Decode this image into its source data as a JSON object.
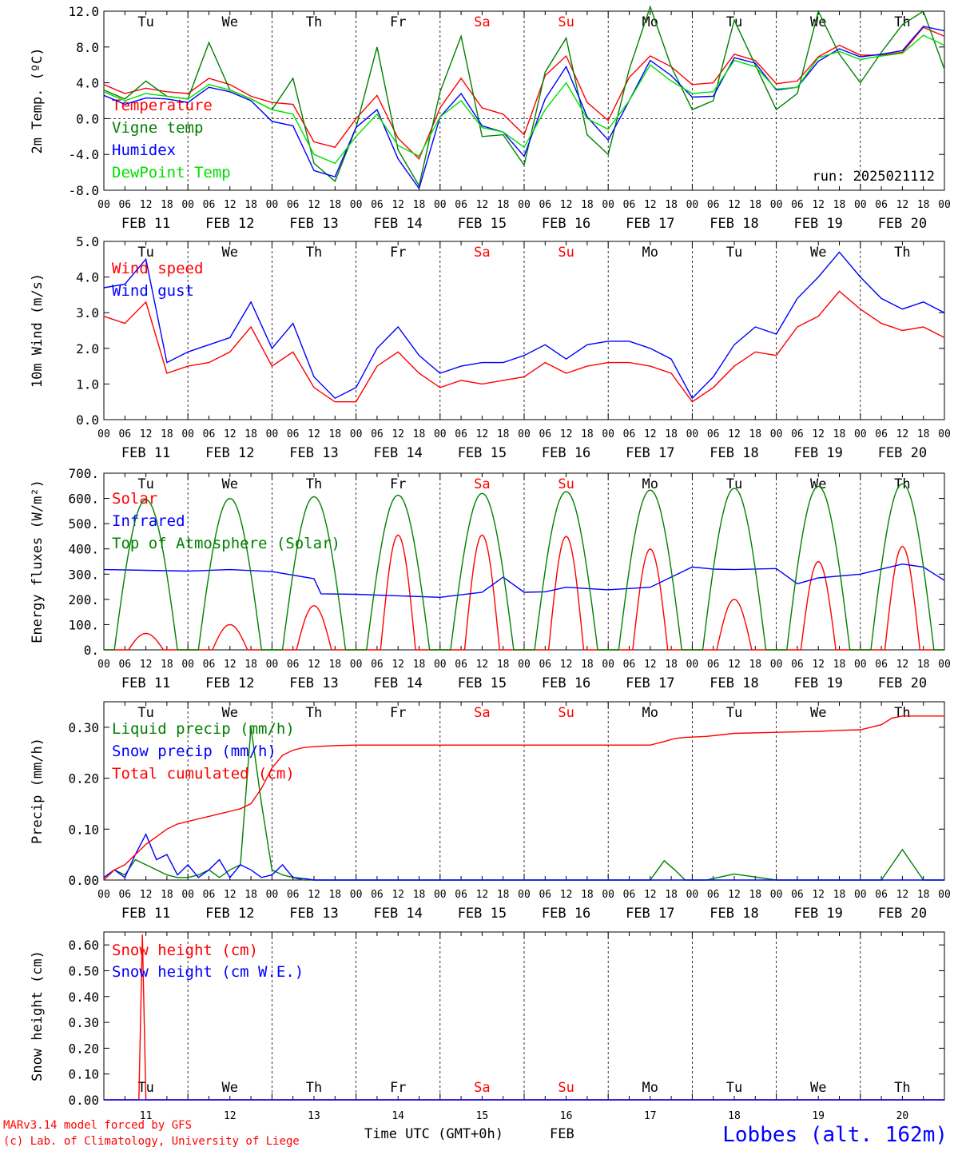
{
  "days": {
    "weekday_labels": [
      "Tu",
      "We",
      "Th",
      "Fr",
      "Sa",
      "Su",
      "Mo",
      "Tu",
      "We",
      "Th"
    ],
    "weekend_indices": [
      4,
      5
    ],
    "date_labels": [
      "FEB 11",
      "FEB 12",
      "FEB 13",
      "FEB 14",
      "FEB 15",
      "FEB 16",
      "FEB 17",
      "FEB 18",
      "FEB 19",
      "FEB 20"
    ],
    "hour_ticks": [
      "00",
      "06",
      "12",
      "18"
    ],
    "hour_end": "00",
    "day_numbers": [
      "11",
      "12",
      "13",
      "14",
      "15",
      "16",
      "17",
      "18",
      "19",
      "20"
    ]
  },
  "colors": {
    "red": "#ff0000",
    "green": "#008000",
    "blue": "#0000ff",
    "lightgreen": "#00e000",
    "weekend": "#ff0000"
  },
  "footer": {
    "model": "MARv3.14 model forced by GFS",
    "lab": "(c) Lab. of Climatology, University of Liege",
    "xlabel": "Time UTC (GMT+0h)",
    "month": "FEB",
    "station": "Lobbes (alt. 162m)"
  },
  "chart_data": [
    {
      "type": "line",
      "ylabel": "2m Temp. (ºC)",
      "ylim": [
        -8,
        12
      ],
      "yticks": [
        "12.0",
        "8.0",
        "4.0",
        "0.0",
        "-4.0",
        "-8.0"
      ],
      "annotation": "run: 2025021112",
      "x_hours": [
        0,
        6,
        12,
        18,
        24,
        30,
        36,
        42,
        48,
        54,
        60,
        66,
        72,
        78,
        84,
        90,
        96,
        102,
        108,
        114,
        120,
        126,
        132,
        138,
        144,
        150,
        156,
        162,
        168,
        174,
        180,
        186,
        192,
        198,
        204,
        210,
        216,
        222,
        228,
        234,
        240
      ],
      "series": [
        {
          "name": "Temperature",
          "color_key": "red",
          "values": [
            3.8,
            2.8,
            3.4,
            3.0,
            2.8,
            4.5,
            3.8,
            2.5,
            1.8,
            1.6,
            -2.6,
            -3.2,
            0.0,
            2.6,
            -2.2,
            -4.5,
            1.2,
            4.5,
            1.2,
            0.5,
            -1.8,
            4.8,
            7.0,
            1.8,
            -0.2,
            4.6,
            7.0,
            5.8,
            3.8,
            4.0,
            7.2,
            6.5,
            3.9,
            4.2,
            6.9,
            8.2,
            7.1,
            7.1,
            7.4,
            10.2,
            9.2
          ]
        },
        {
          "name": "Vigne temp",
          "color_key": "green",
          "values": [
            3.2,
            2.2,
            4.2,
            2.5,
            2.2,
            8.5,
            3.2,
            2.2,
            1.0,
            4.5,
            -5.0,
            -7.0,
            -1.0,
            8.0,
            -3.5,
            -7.5,
            3.0,
            9.2,
            -2.0,
            -1.8,
            -5.2,
            5.2,
            9.0,
            -1.8,
            -4.0,
            5.5,
            12.5,
            5.8,
            1.0,
            2.0,
            11.0,
            6.0,
            1.0,
            2.8,
            12.0,
            7.2,
            4.0,
            7.4,
            10.5,
            12.0,
            5.5
          ]
        },
        {
          "name": "Humidex",
          "color_key": "blue",
          "values": [
            2.6,
            1.6,
            2.3,
            2.2,
            1.8,
            3.5,
            3.0,
            2.0,
            -0.3,
            -0.8,
            -5.8,
            -6.5,
            -1.0,
            1.0,
            -4.5,
            -7.8,
            0.2,
            2.8,
            -0.8,
            -1.5,
            -4.2,
            2.2,
            5.8,
            0.2,
            -2.4,
            2.0,
            6.5,
            4.8,
            2.4,
            2.5,
            6.8,
            6.2,
            3.2,
            3.5,
            6.4,
            7.8,
            6.9,
            7.2,
            7.6,
            10.3,
            9.8
          ]
        },
        {
          "name": "DewPoint Temp",
          "color_key": "lightgreen",
          "values": [
            3.0,
            2.0,
            2.8,
            2.5,
            2.2,
            3.8,
            3.2,
            2.2,
            1.0,
            0.5,
            -4.0,
            -5.0,
            -2.0,
            0.5,
            -3.0,
            -4.2,
            0.2,
            2.0,
            -1.0,
            -1.5,
            -3.2,
            1.0,
            4.0,
            0.0,
            -1.2,
            2.0,
            6.0,
            4.2,
            2.8,
            3.0,
            6.5,
            5.8,
            3.3,
            3.5,
            6.8,
            7.5,
            6.6,
            7.0,
            7.3,
            9.3,
            8.2
          ]
        }
      ]
    },
    {
      "type": "line",
      "ylabel": "10m Wind (m/s)",
      "ylim": [
        0,
        5
      ],
      "yticks": [
        "5.0",
        "4.0",
        "3.0",
        "2.0",
        "1.0",
        "0.0"
      ],
      "x_hours": [
        0,
        6,
        12,
        18,
        24,
        30,
        36,
        42,
        48,
        54,
        60,
        66,
        72,
        78,
        84,
        90,
        96,
        102,
        108,
        114,
        120,
        126,
        132,
        138,
        144,
        150,
        156,
        162,
        168,
        174,
        180,
        186,
        192,
        198,
        204,
        210,
        216,
        222,
        228,
        234,
        240
      ],
      "series": [
        {
          "name": "Wind speed",
          "color_key": "red",
          "values": [
            2.9,
            2.7,
            3.3,
            1.3,
            1.5,
            1.6,
            1.9,
            2.6,
            1.5,
            1.9,
            0.9,
            0.5,
            0.5,
            1.5,
            1.9,
            1.3,
            0.9,
            1.1,
            1.0,
            1.1,
            1.2,
            1.6,
            1.3,
            1.5,
            1.6,
            1.6,
            1.5,
            1.3,
            0.5,
            0.9,
            1.5,
            1.9,
            1.8,
            2.6,
            2.9,
            3.6,
            3.1,
            2.7,
            2.5,
            2.6,
            2.3
          ]
        },
        {
          "name": "Wind gust",
          "color_key": "blue",
          "values": [
            3.7,
            3.8,
            4.5,
            1.6,
            1.9,
            2.1,
            2.3,
            3.3,
            2.0,
            2.7,
            1.2,
            0.6,
            0.9,
            2.0,
            2.6,
            1.8,
            1.3,
            1.5,
            1.6,
            1.6,
            1.8,
            2.1,
            1.7,
            2.1,
            2.2,
            2.2,
            2.0,
            1.7,
            0.6,
            1.2,
            2.1,
            2.6,
            2.4,
            3.4,
            4.0,
            4.7,
            4.0,
            3.4,
            3.1,
            3.3,
            3.0
          ]
        }
      ]
    },
    {
      "type": "line",
      "ylabel": "Energy fluxes (W/m²)",
      "ylim": [
        0,
        700
      ],
      "yticks": [
        "700.",
        "600.",
        "500.",
        "400.",
        "300.",
        "200.",
        "100.",
        "0."
      ],
      "series": [
        {
          "name": "Solar",
          "color_key": "red",
          "peaks": [
            65,
            100,
            175,
            455,
            455,
            450,
            400,
            200,
            350,
            410
          ]
        },
        {
          "name": "Infrared",
          "color_key": "blue",
          "x_hours": [
            0,
            12,
            24,
            36,
            48,
            60,
            62,
            72,
            84,
            96,
            108,
            114,
            120,
            126,
            132,
            144,
            156,
            168,
            174,
            180,
            192,
            198,
            204,
            216,
            228,
            234,
            240
          ],
          "values": [
            318,
            315,
            312,
            318,
            310,
            282,
            222,
            220,
            214,
            208,
            228,
            288,
            228,
            230,
            248,
            238,
            248,
            328,
            320,
            318,
            322,
            262,
            285,
            300,
            340,
            328,
            275
          ]
        },
        {
          "name": "Top of Atmosphere (Solar)",
          "color_key": "green",
          "peaks": [
            595,
            600,
            607,
            613,
            620,
            627,
            633,
            640,
            648,
            658
          ]
        }
      ]
    },
    {
      "type": "line",
      "ylabel": "Precip (mm/h)",
      "ylim": [
        0,
        0.35
      ],
      "yticks": [
        "0.30",
        "0.20",
        "0.10",
        "0.00"
      ],
      "x_hours": [
        0,
        3,
        6,
        9,
        12,
        15,
        18,
        21,
        24,
        27,
        30,
        33,
        36,
        39,
        42,
        45,
        48,
        51,
        54,
        57,
        60,
        66,
        72,
        78,
        84,
        96,
        108,
        120,
        132,
        144,
        150,
        156,
        160,
        163,
        166,
        172,
        180,
        192,
        204,
        210,
        216,
        222,
        225,
        228,
        234,
        240
      ],
      "series": [
        {
          "name": "Liquid precip (mm/h)",
          "color_key": "green",
          "values": [
            0.005,
            0.02,
            0.01,
            0.04,
            0.03,
            0.02,
            0.01,
            0.005,
            0.005,
            0.01,
            0.02,
            0.005,
            0.02,
            0.03,
            0.3,
            0.15,
            0.02,
            0.01,
            0.005,
            0.0,
            0.0,
            0.0,
            0.0,
            0.0,
            0.0,
            0.0,
            0.0,
            0.0,
            0.0,
            0.0,
            0.0,
            0.0,
            0.038,
            0.02,
            0.0,
            0.0,
            0.012,
            0.0,
            0.0,
            0.0,
            0.0,
            0.0,
            0.03,
            0.06,
            0.0,
            0.0
          ]
        },
        {
          "name": "Snow precip (mm/h)",
          "color_key": "blue",
          "values": [
            0.005,
            0.02,
            0.005,
            0.05,
            0.09,
            0.04,
            0.05,
            0.01,
            0.03,
            0.005,
            0.02,
            0.04,
            0.005,
            0.03,
            0.02,
            0.005,
            0.01,
            0.03,
            0.005,
            0.003,
            0.0,
            0.0,
            0.0,
            0.0,
            0.0,
            0.0,
            0.0,
            0.0,
            0.0,
            0.0,
            0.0,
            0.0,
            0.0,
            0.0,
            0.0,
            0.0,
            0.0,
            0.0,
            0.0,
            0.0,
            0.0,
            0.0,
            0.0,
            0.0,
            0.0,
            0.0
          ]
        },
        {
          "name": "Total cumulated (cm)",
          "color_key": "red",
          "values": [
            0.0,
            0.02,
            0.03,
            0.05,
            0.07,
            0.085,
            0.1,
            0.11,
            0.115,
            0.12,
            0.125,
            0.13,
            0.135,
            0.14,
            0.15,
            0.18,
            0.22,
            0.245,
            0.255,
            0.26,
            0.262,
            0.264,
            0.265,
            0.265,
            0.265,
            0.265,
            0.265,
            0.265,
            0.265,
            0.265,
            0.265,
            0.265,
            0.272,
            0.278,
            0.28,
            0.282,
            0.288,
            0.29,
            0.292,
            0.294,
            0.295,
            0.305,
            0.318,
            0.322,
            0.322,
            0.322
          ]
        }
      ]
    },
    {
      "type": "line",
      "ylabel": "Snow height (cm)",
      "ylim": [
        0,
        0.65
      ],
      "yticks": [
        "0.60",
        "0.50",
        "0.40",
        "0.30",
        "0.20",
        "0.10",
        "0.00"
      ],
      "x_hours": [
        0,
        8,
        10,
        11,
        12,
        240
      ],
      "series": [
        {
          "name": "Snow height (cm)",
          "color_key": "red",
          "values": [
            0,
            0,
            0,
            0.64,
            0,
            0
          ]
        },
        {
          "name": "Snow height (cm W.E.)",
          "color_key": "blue",
          "values": [
            0,
            0,
            0,
            0,
            0,
            0
          ]
        }
      ]
    }
  ]
}
